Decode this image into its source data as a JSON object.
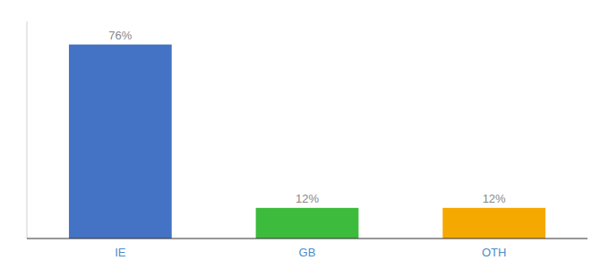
{
  "chart_data": {
    "type": "bar",
    "categories": [
      "IE",
      "GB",
      "OTH"
    ],
    "values": [
      76,
      12,
      12
    ],
    "value_labels": [
      "76%",
      "12%",
      "12%"
    ],
    "colors": [
      "#4472c4",
      "#3dbb3d",
      "#f5a800"
    ],
    "ylim": [
      0,
      85
    ],
    "data_labels": true,
    "tick_labels": "x"
  }
}
